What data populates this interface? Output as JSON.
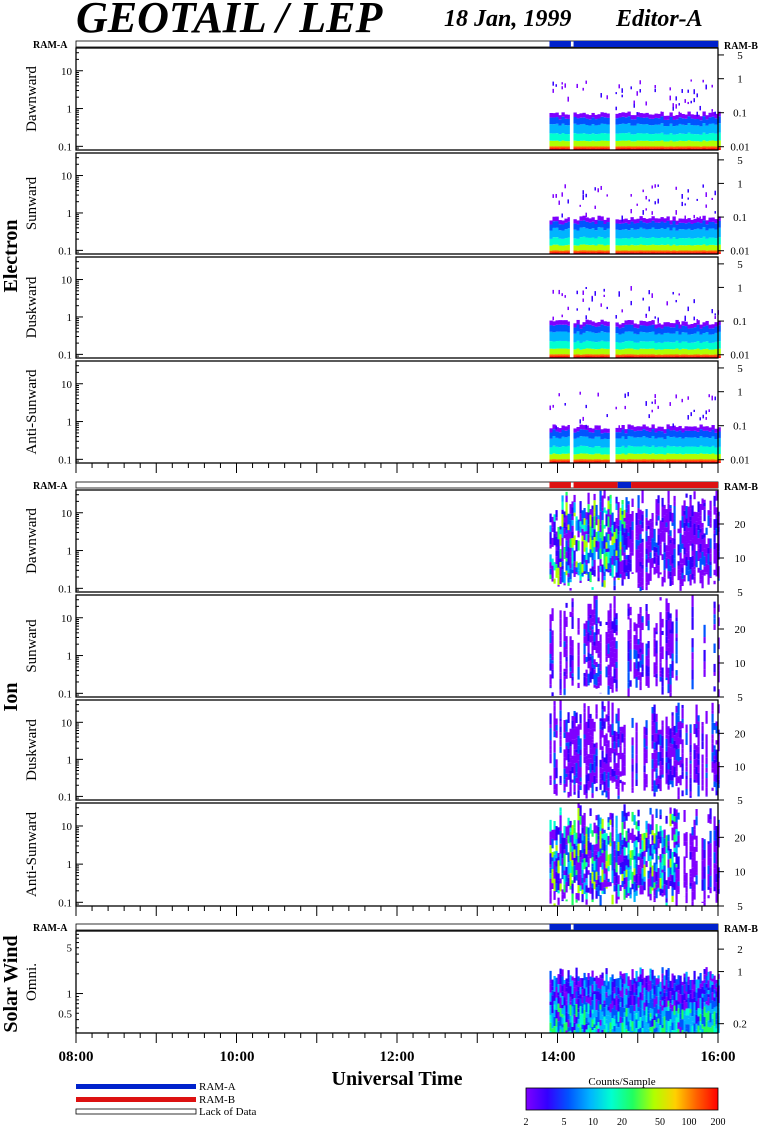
{
  "header": {
    "title": "GEOTAIL / LEP",
    "date": "18 Jan, 1999",
    "editor": "Editor-A"
  },
  "ram": {
    "left": "RAM-A",
    "right": "RAM-B"
  },
  "groups": {
    "electron": "Electron",
    "ion": "Ion",
    "solar_wind": "Solar Wind"
  },
  "x_axis": {
    "title": "Universal Time",
    "ticks": [
      "08:00",
      "10:00",
      "12:00",
      "14:00",
      "16:00"
    ]
  },
  "legend": {
    "ram_a": "RAM-A",
    "ram_b": "RAM-B",
    "lack": "Lack of Data",
    "colorbar_title": "Counts/Sample",
    "colorbar_ticks": [
      "2",
      "5",
      "10",
      "20",
      "50",
      "100",
      "200"
    ]
  },
  "colors": {
    "ram_a": "#0022cc",
    "ram_b": "#dd1111",
    "colormap": [
      "#7f00ff",
      "#3300ff",
      "#0055ff",
      "#00b4ff",
      "#00ffd0",
      "#20ff60",
      "#b0ff00",
      "#ffd000",
      "#ff6000",
      "#ff0000"
    ]
  },
  "chart_data": [
    {
      "type": "heatmap",
      "panel": "electron-dawnward",
      "ylabel": "Dawnward",
      "left_ticks": [
        "10",
        "1",
        "0.1"
      ],
      "right_ticks": [
        "5",
        "1",
        "0.1",
        "0.01"
      ],
      "x_range": [
        "08:00",
        "16:00"
      ],
      "data_start": "13:54",
      "data_end": "16:00",
      "gaps": [
        "14:10",
        "14:40"
      ]
    },
    {
      "type": "heatmap",
      "panel": "electron-sunward",
      "ylabel": "Sunward",
      "left_ticks": [
        "10",
        "1",
        "0.1"
      ],
      "right_ticks": [
        "5",
        "1",
        "0.1",
        "0.01"
      ],
      "x_range": [
        "08:00",
        "16:00"
      ],
      "data_start": "13:54",
      "data_end": "16:00",
      "gaps": [
        "14:10",
        "14:40"
      ]
    },
    {
      "type": "heatmap",
      "panel": "electron-duskward",
      "ylabel": "Duskward",
      "left_ticks": [
        "10",
        "1",
        "0.1"
      ],
      "right_ticks": [
        "5",
        "1",
        "0.1",
        "0.01"
      ],
      "x_range": [
        "08:00",
        "16:00"
      ],
      "data_start": "13:54",
      "data_end": "16:00",
      "gaps": [
        "14:10",
        "14:40"
      ]
    },
    {
      "type": "heatmap",
      "panel": "electron-anti-sunward",
      "ylabel": "Anti-Sunward",
      "left_ticks": [
        "10",
        "1",
        "0.1"
      ],
      "right_ticks": [
        "5",
        "1",
        "0.1",
        "0.01"
      ],
      "x_range": [
        "08:00",
        "16:00"
      ],
      "data_start": "13:54",
      "data_end": "16:00",
      "gaps": [
        "14:10",
        "14:40"
      ]
    },
    {
      "type": "heatmap",
      "panel": "ion-dawnward",
      "ylabel": "Dawnward",
      "left_ticks": [
        "10",
        "1",
        "0.1"
      ],
      "right_ticks": [
        "20",
        "10",
        "5"
      ],
      "x_range": [
        "08:00",
        "16:00"
      ],
      "data_start": "13:54",
      "data_end": "16:00"
    },
    {
      "type": "heatmap",
      "panel": "ion-sunward",
      "ylabel": "Sunward",
      "left_ticks": [
        "10",
        "1",
        "0.1"
      ],
      "right_ticks": [
        "20",
        "10",
        "5"
      ],
      "x_range": [
        "08:00",
        "16:00"
      ],
      "data_start": "13:54",
      "data_end": "16:00"
    },
    {
      "type": "heatmap",
      "panel": "ion-duskward",
      "ylabel": "Duskward",
      "left_ticks": [
        "10",
        "1",
        "0.1"
      ],
      "right_ticks": [
        "20",
        "10",
        "5"
      ],
      "x_range": [
        "08:00",
        "16:00"
      ],
      "data_start": "13:54",
      "data_end": "16:00"
    },
    {
      "type": "heatmap",
      "panel": "ion-anti-sunward",
      "ylabel": "Anti-Sunward",
      "left_ticks": [
        "10",
        "1",
        "0.1"
      ],
      "right_ticks": [
        "20",
        "10",
        "5"
      ],
      "x_range": [
        "08:00",
        "16:00"
      ],
      "data_start": "13:54",
      "data_end": "16:00"
    },
    {
      "type": "heatmap",
      "panel": "solar-wind-omni",
      "ylabel": "Omni.",
      "left_ticks": [
        "5",
        "1",
        "0.5"
      ],
      "right_ticks": [
        "2",
        "1",
        "0.2"
      ],
      "x_range": [
        "08:00",
        "16:00"
      ],
      "data_start": "13:54",
      "data_end": "16:00"
    }
  ]
}
